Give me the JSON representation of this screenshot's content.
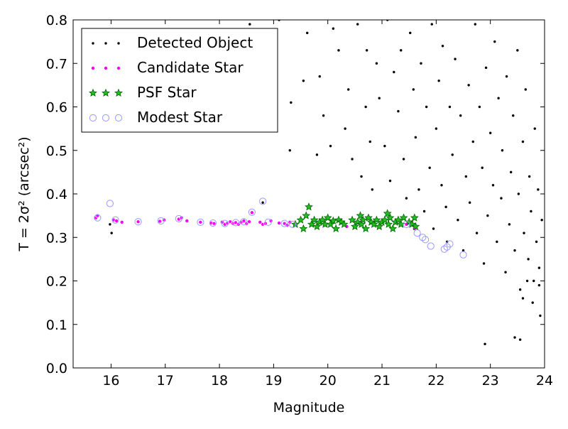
{
  "chart_data": {
    "type": "scatter",
    "title": "",
    "xlabel": "Magnitude",
    "ylabel": "T = 2σ² (arcsec²)",
    "xlim": [
      15.3,
      24
    ],
    "ylim": [
      0.0,
      0.8
    ],
    "xticks": [
      "16",
      "17",
      "18",
      "19",
      "20",
      "21",
      "22",
      "23",
      "24"
    ],
    "yticks": [
      "0.0",
      "0.1",
      "0.2",
      "0.3",
      "0.4",
      "0.5",
      "0.6",
      "0.7",
      "0.8"
    ],
    "grid": false,
    "legend_position": "top-left",
    "legend": [
      "Detected Object",
      "Candidate Star",
      "PSF Star",
      "Modest Star"
    ],
    "colors": {
      "detected": "#000000",
      "candidate_face": "#ff00ff",
      "candidate_edge": "#ffffff",
      "psf_face": "#22bb22",
      "psf_edge": "#006400",
      "modest_edge": "#9999ff"
    },
    "series": [
      {
        "name": "Detected Object",
        "marker": "dot",
        "points": [
          [
            15.98,
            0.33
          ],
          [
            16.01,
            0.31
          ],
          [
            18.56,
            0.79
          ],
          [
            18.8,
            0.38
          ],
          [
            19.1,
            0.8
          ],
          [
            19.3,
            0.5
          ],
          [
            19.32,
            0.61
          ],
          [
            19.55,
            0.66
          ],
          [
            19.62,
            0.77
          ],
          [
            19.8,
            0.49
          ],
          [
            19.85,
            0.67
          ],
          [
            19.92,
            0.58
          ],
          [
            20.05,
            0.51
          ],
          [
            20.1,
            0.78
          ],
          [
            20.2,
            0.73
          ],
          [
            20.32,
            0.55
          ],
          [
            20.38,
            0.64
          ],
          [
            20.45,
            0.48
          ],
          [
            20.55,
            0.79
          ],
          [
            20.62,
            0.44
          ],
          [
            20.7,
            0.6
          ],
          [
            20.72,
            0.73
          ],
          [
            20.78,
            0.52
          ],
          [
            20.82,
            0.41
          ],
          [
            20.9,
            0.7
          ],
          [
            20.95,
            0.62
          ],
          [
            21.05,
            0.51
          ],
          [
            21.1,
            0.8
          ],
          [
            21.15,
            0.43
          ],
          [
            21.22,
            0.68
          ],
          [
            21.3,
            0.59
          ],
          [
            21.35,
            0.73
          ],
          [
            21.4,
            0.48
          ],
          [
            21.45,
            0.39
          ],
          [
            21.52,
            0.77
          ],
          [
            21.58,
            0.64
          ],
          [
            21.62,
            0.53
          ],
          [
            21.68,
            0.41
          ],
          [
            21.72,
            0.7
          ],
          [
            21.78,
            0.36
          ],
          [
            21.82,
            0.6
          ],
          [
            21.88,
            0.46
          ],
          [
            21.92,
            0.79
          ],
          [
            21.95,
            0.32
          ],
          [
            22.0,
            0.55
          ],
          [
            22.05,
            0.66
          ],
          [
            22.1,
            0.42
          ],
          [
            22.12,
            0.74
          ],
          [
            22.18,
            0.37
          ],
          [
            22.2,
            0.29
          ],
          [
            22.25,
            0.6
          ],
          [
            22.3,
            0.49
          ],
          [
            22.35,
            0.71
          ],
          [
            22.4,
            0.34
          ],
          [
            22.45,
            0.58
          ],
          [
            22.5,
            0.27
          ],
          [
            22.55,
            0.44
          ],
          [
            22.6,
            0.65
          ],
          [
            22.62,
            0.38
          ],
          [
            22.68,
            0.52
          ],
          [
            22.72,
            0.79
          ],
          [
            22.75,
            0.31
          ],
          [
            22.8,
            0.6
          ],
          [
            22.85,
            0.46
          ],
          [
            22.88,
            0.24
          ],
          [
            22.92,
            0.69
          ],
          [
            22.95,
            0.35
          ],
          [
            23.0,
            0.54
          ],
          [
            23.05,
            0.42
          ],
          [
            23.08,
            0.75
          ],
          [
            23.12,
            0.29
          ],
          [
            23.15,
            0.62
          ],
          [
            23.2,
            0.39
          ],
          [
            23.22,
            0.5
          ],
          [
            23.28,
            0.22
          ],
          [
            23.3,
            0.67
          ],
          [
            23.35,
            0.33
          ],
          [
            23.38,
            0.45
          ],
          [
            23.42,
            0.58
          ],
          [
            23.45,
            0.27
          ],
          [
            23.5,
            0.73
          ],
          [
            23.52,
            0.4
          ],
          [
            23.55,
            0.18
          ],
          [
            23.6,
            0.52
          ],
          [
            23.62,
            0.31
          ],
          [
            23.65,
            0.64
          ],
          [
            23.7,
            0.25
          ],
          [
            23.72,
            0.44
          ],
          [
            23.75,
            0.36
          ],
          [
            23.8,
            0.2
          ],
          [
            23.82,
            0.55
          ],
          [
            23.85,
            0.29
          ],
          [
            23.88,
            0.41
          ],
          [
            23.9,
            0.23
          ],
          [
            23.92,
            0.12
          ],
          [
            23.95,
            0.34
          ],
          [
            22.9,
            0.055
          ],
          [
            23.45,
            0.07
          ],
          [
            23.55,
            0.065
          ],
          [
            23.6,
            0.16
          ],
          [
            23.68,
            0.2
          ],
          [
            23.78,
            0.15
          ],
          [
            23.9,
            0.19
          ]
        ]
      },
      {
        "name": "Candidate Star",
        "marker": "small-circle",
        "points": [
          [
            15.72,
            0.345
          ],
          [
            15.75,
            0.35
          ],
          [
            16.05,
            0.34
          ],
          [
            16.1,
            0.338
          ],
          [
            16.2,
            0.335
          ],
          [
            16.5,
            0.336
          ],
          [
            16.9,
            0.337
          ],
          [
            16.98,
            0.34
          ],
          [
            17.25,
            0.342
          ],
          [
            17.3,
            0.345
          ],
          [
            17.4,
            0.338
          ],
          [
            17.65,
            0.335
          ],
          [
            17.85,
            0.333
          ],
          [
            17.9,
            0.332
          ],
          [
            18.05,
            0.335
          ],
          [
            18.1,
            0.33
          ],
          [
            18.15,
            0.333
          ],
          [
            18.2,
            0.336
          ],
          [
            18.25,
            0.332
          ],
          [
            18.3,
            0.334
          ],
          [
            18.35,
            0.33
          ],
          [
            18.4,
            0.335
          ],
          [
            18.45,
            0.338
          ],
          [
            18.5,
            0.332
          ],
          [
            18.55,
            0.336
          ],
          [
            18.6,
            0.357
          ],
          [
            18.75,
            0.335
          ],
          [
            18.8,
            0.33
          ],
          [
            18.85,
            0.332
          ],
          [
            18.95,
            0.338
          ],
          [
            19.1,
            0.333
          ],
          [
            19.2,
            0.332
          ],
          [
            19.25,
            0.328
          ],
          [
            19.3,
            0.335
          ],
          [
            20.35,
            0.325
          ],
          [
            21.45,
            0.33
          ],
          [
            21.55,
            0.335
          ],
          [
            21.6,
            0.32
          ]
        ]
      },
      {
        "name": "PSF Star",
        "marker": "star",
        "points": [
          [
            19.4,
            0.33
          ],
          [
            19.5,
            0.34
          ],
          [
            19.55,
            0.32
          ],
          [
            19.6,
            0.35
          ],
          [
            19.65,
            0.37
          ],
          [
            19.7,
            0.33
          ],
          [
            19.75,
            0.34
          ],
          [
            19.8,
            0.325
          ],
          [
            19.85,
            0.335
          ],
          [
            19.9,
            0.34
          ],
          [
            19.95,
            0.33
          ],
          [
            20.0,
            0.345
          ],
          [
            20.05,
            0.33
          ],
          [
            20.1,
            0.338
          ],
          [
            20.15,
            0.32
          ],
          [
            20.2,
            0.34
          ],
          [
            20.25,
            0.335
          ],
          [
            20.3,
            0.33
          ],
          [
            20.45,
            0.34
          ],
          [
            20.5,
            0.325
          ],
          [
            20.55,
            0.335
          ],
          [
            20.6,
            0.35
          ],
          [
            20.62,
            0.33
          ],
          [
            20.65,
            0.34
          ],
          [
            20.7,
            0.32
          ],
          [
            20.75,
            0.345
          ],
          [
            20.8,
            0.335
          ],
          [
            20.85,
            0.33
          ],
          [
            20.9,
            0.34
          ],
          [
            20.95,
            0.325
          ],
          [
            21.0,
            0.335
          ],
          [
            21.05,
            0.34
          ],
          [
            21.1,
            0.355
          ],
          [
            21.12,
            0.33
          ],
          [
            21.15,
            0.345
          ],
          [
            21.2,
            0.32
          ],
          [
            21.25,
            0.335
          ],
          [
            21.3,
            0.34
          ],
          [
            21.35,
            0.33
          ],
          [
            21.4,
            0.345
          ],
          [
            21.5,
            0.335
          ],
          [
            21.55,
            0.33
          ],
          [
            21.6,
            0.345
          ],
          [
            21.62,
            0.325
          ]
        ]
      },
      {
        "name": "Modest Star",
        "marker": "open-circle",
        "points": [
          [
            15.75,
            0.345
          ],
          [
            15.98,
            0.378
          ],
          [
            16.08,
            0.34
          ],
          [
            16.5,
            0.336
          ],
          [
            16.92,
            0.338
          ],
          [
            17.25,
            0.343
          ],
          [
            17.65,
            0.335
          ],
          [
            17.88,
            0.333
          ],
          [
            18.1,
            0.332
          ],
          [
            18.3,
            0.334
          ],
          [
            18.45,
            0.336
          ],
          [
            18.6,
            0.358
          ],
          [
            18.8,
            0.383
          ],
          [
            18.9,
            0.335
          ],
          [
            19.2,
            0.332
          ],
          [
            19.35,
            0.33
          ],
          [
            21.45,
            0.33
          ],
          [
            21.65,
            0.31
          ],
          [
            21.75,
            0.3
          ],
          [
            21.8,
            0.295
          ],
          [
            21.9,
            0.28
          ],
          [
            22.15,
            0.273
          ],
          [
            22.2,
            0.278
          ],
          [
            22.25,
            0.285
          ],
          [
            22.5,
            0.26
          ]
        ]
      }
    ]
  }
}
